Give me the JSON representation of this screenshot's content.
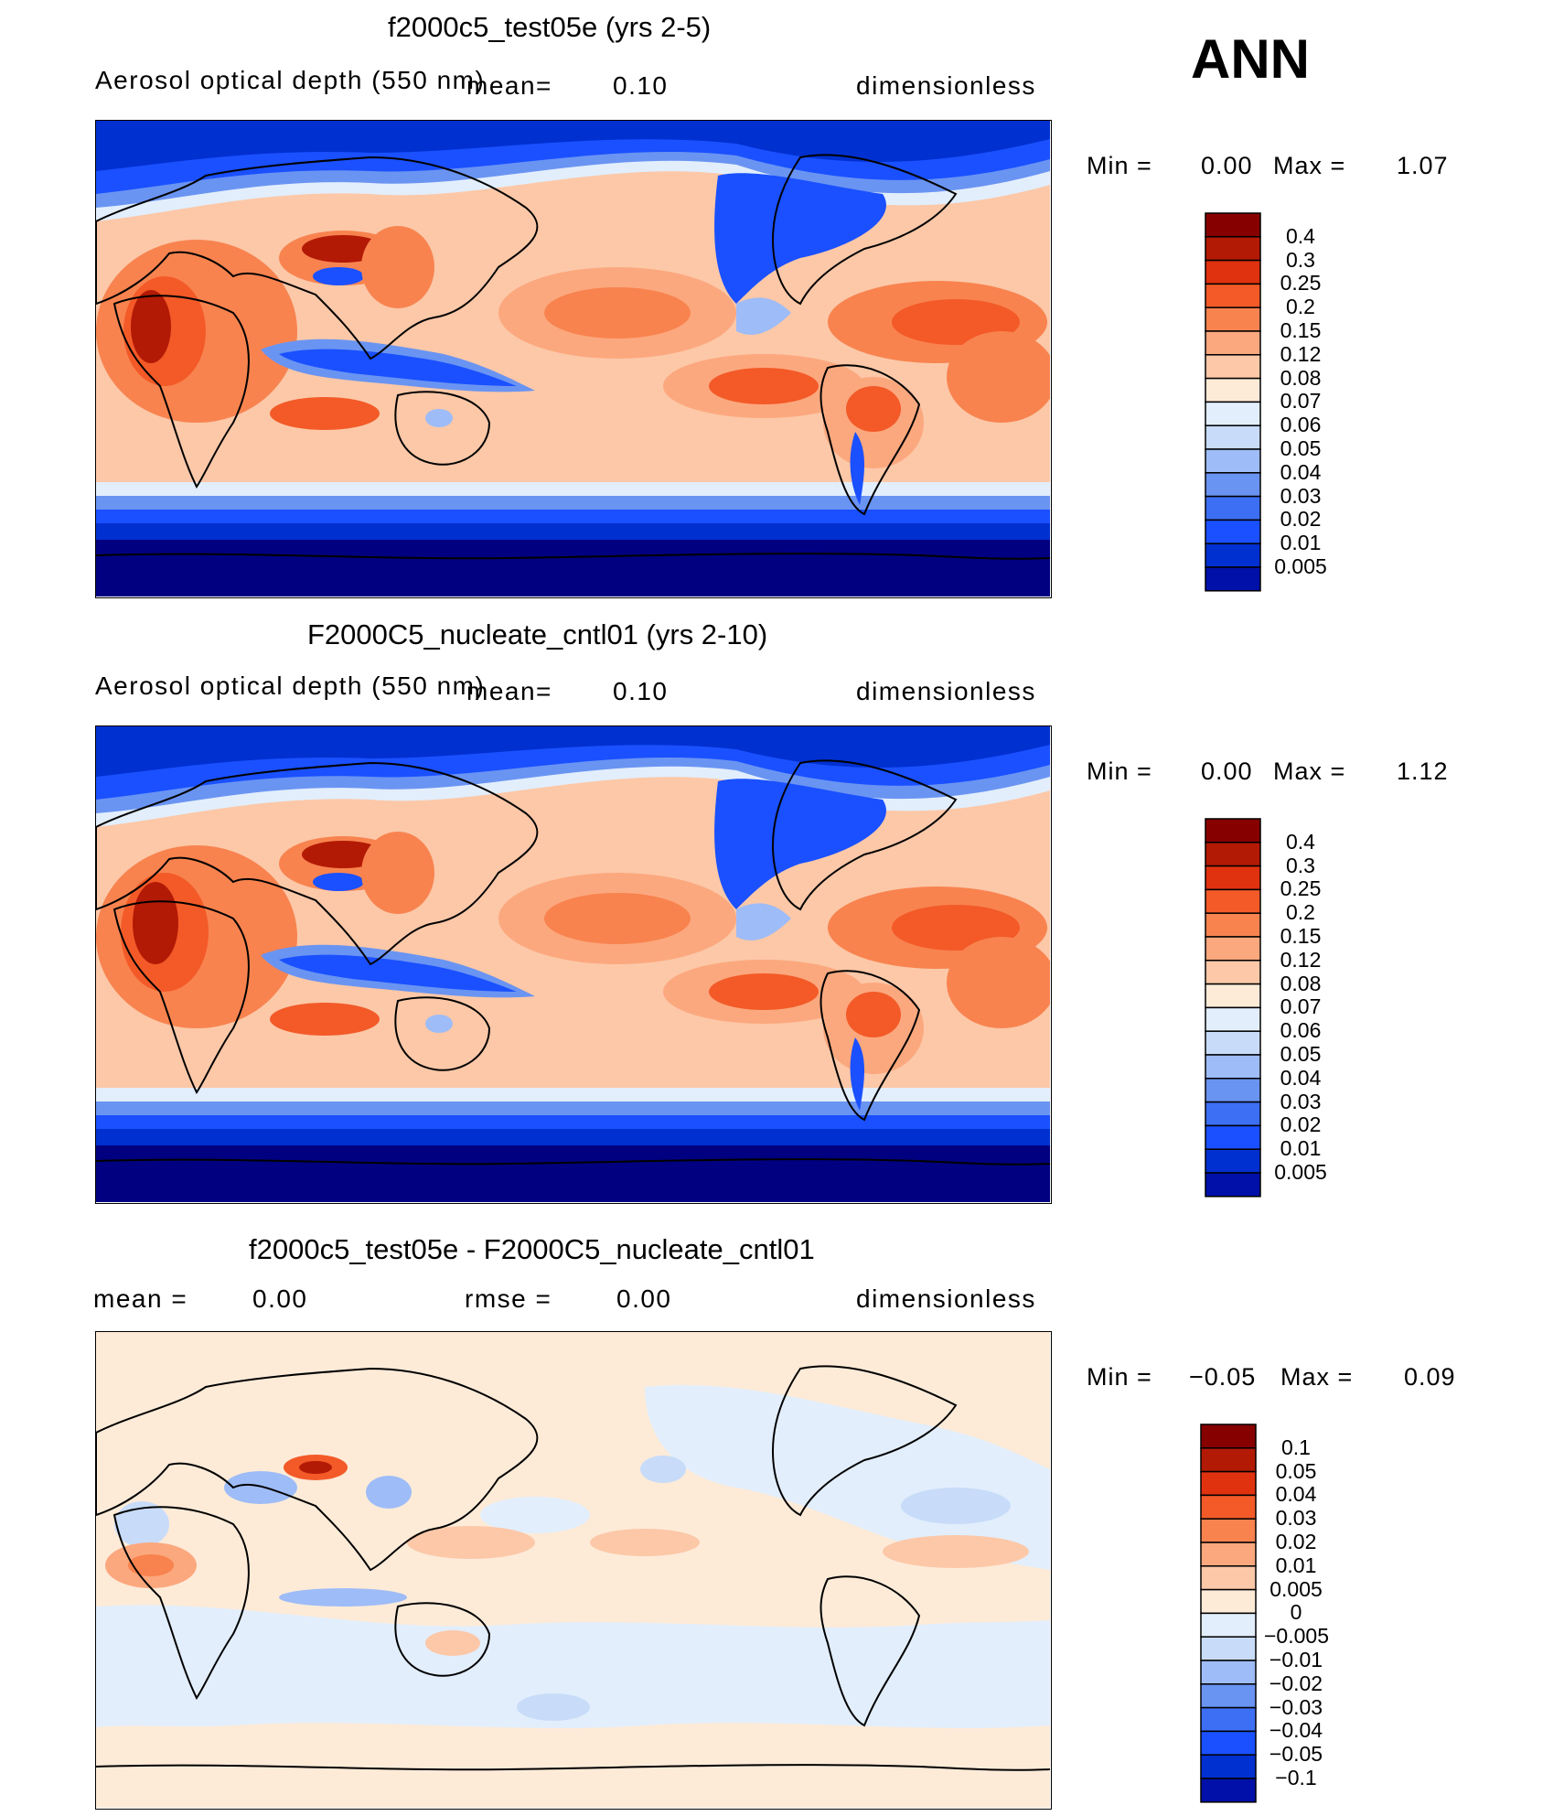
{
  "season": "ANN",
  "colorbar_colors": [
    "#000080",
    "#0010a8",
    "#0030d0",
    "#1a50ff",
    "#3d6ff5",
    "#6a94f2",
    "#9ebcf7",
    "#c8dcf9",
    "#e2eefc",
    "#fdebd8",
    "#fcc8a8",
    "#fca87e",
    "#f8834f",
    "#f35a28",
    "#e0320f",
    "#b31a05",
    "#870000"
  ],
  "panels": [
    {
      "title": "f2000c5_test05e (yrs 2-5)",
      "variable": "Aerosol optical depth (550 nm)",
      "mean_label": "mean=",
      "mean_value": "0.10",
      "units": "dimensionless",
      "min_label": "Min =",
      "min_value": "0.00",
      "max_label": "Max =",
      "max_value": "1.07",
      "levels": [
        "0.4",
        "0.3",
        "0.25",
        "0.2",
        "0.15",
        "0.12",
        "0.08",
        "0.07",
        "0.06",
        "0.05",
        "0.04",
        "0.03",
        "0.02",
        "0.01",
        "0.005"
      ]
    },
    {
      "title": "F2000C5_nucleate_cntl01 (yrs 2-10)",
      "variable": "Aerosol optical depth (550 nm)",
      "mean_label": "mean=",
      "mean_value": "0.10",
      "units": "dimensionless",
      "min_label": "Min =",
      "min_value": "0.00",
      "max_label": "Max =",
      "max_value": "1.12",
      "levels": [
        "0.4",
        "0.3",
        "0.25",
        "0.2",
        "0.15",
        "0.12",
        "0.08",
        "0.07",
        "0.06",
        "0.05",
        "0.04",
        "0.03",
        "0.02",
        "0.01",
        "0.005"
      ]
    },
    {
      "title": "f2000c5_test05e - F2000C5_nucleate_cntl01",
      "mean_label": "mean =",
      "mean_value": "0.00",
      "rmse_label": "rmse =",
      "rmse_value": "0.00",
      "units": "dimensionless",
      "min_label": "Min =",
      "min_value": "−0.05",
      "max_label": "Max =",
      "max_value": "0.09",
      "levels": [
        "0.1",
        "0.05",
        "0.04",
        "0.03",
        "0.02",
        "0.01",
        "0.005",
        "0",
        "−0.005",
        "−0.01",
        "−0.02",
        "−0.03",
        "−0.04",
        "−0.05",
        "−0.1"
      ]
    }
  ],
  "chart_data": [
    {
      "type": "heatmap",
      "title": "f2000c5_test05e (yrs 2-5)",
      "variable": "Aerosol optical depth (550 nm)",
      "units": "dimensionless",
      "mean": 0.1,
      "min": 0.0,
      "max": 1.07,
      "contour_levels": [
        0.005,
        0.01,
        0.02,
        0.03,
        0.04,
        0.05,
        0.06,
        0.07,
        0.08,
        0.12,
        0.15,
        0.2,
        0.25,
        0.3,
        0.4
      ]
    },
    {
      "type": "heatmap",
      "title": "F2000C5_nucleate_cntl01 (yrs 2-10)",
      "variable": "Aerosol optical depth (550 nm)",
      "units": "dimensionless",
      "mean": 0.1,
      "min": 0.0,
      "max": 1.12,
      "contour_levels": [
        0.005,
        0.01,
        0.02,
        0.03,
        0.04,
        0.05,
        0.06,
        0.07,
        0.08,
        0.12,
        0.15,
        0.2,
        0.25,
        0.3,
        0.4
      ]
    },
    {
      "type": "heatmap",
      "title": "f2000c5_test05e - F2000C5_nucleate_cntl01",
      "units": "dimensionless",
      "mean": 0.0,
      "rmse": 0.0,
      "min": -0.05,
      "max": 0.09,
      "contour_levels": [
        -0.1,
        -0.05,
        -0.04,
        -0.03,
        -0.02,
        -0.01,
        -0.005,
        0,
        0.005,
        0.01,
        0.02,
        0.03,
        0.04,
        0.05,
        0.1
      ]
    }
  ]
}
